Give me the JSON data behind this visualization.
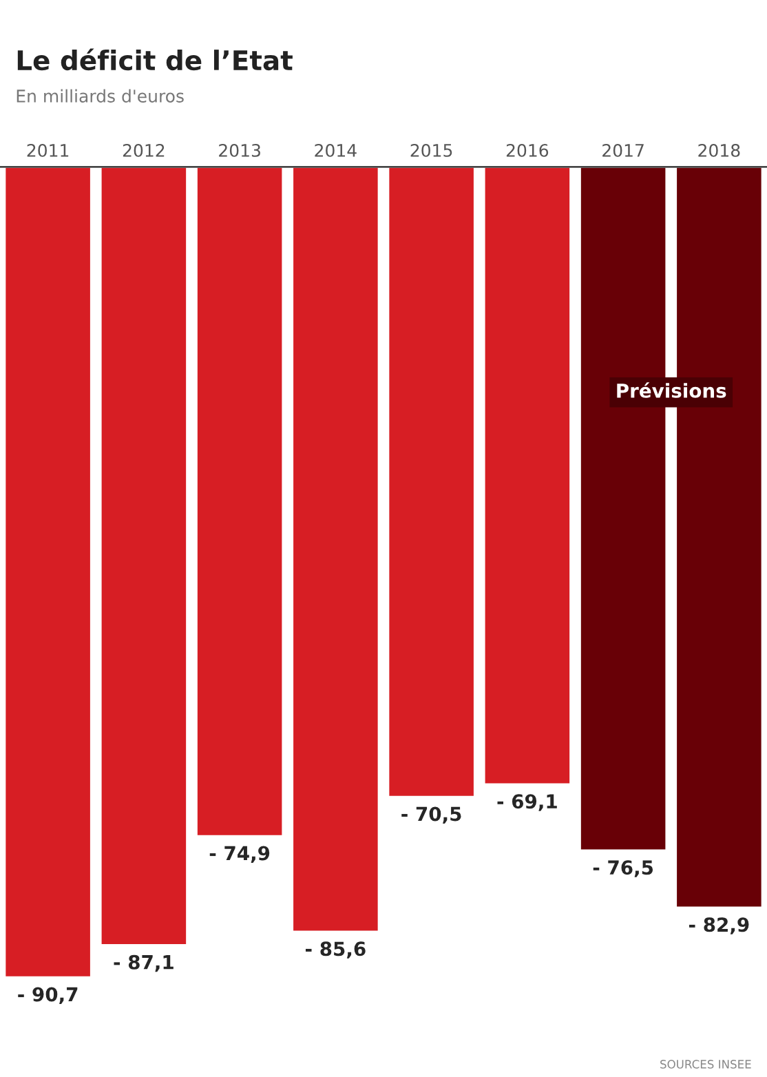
{
  "chart_data": {
    "type": "bar",
    "title": "Le déficit de l’Etat",
    "subtitle": "En milliards d'euros",
    "categories": [
      "2011",
      "2012",
      "2013",
      "2014",
      "2015",
      "2016",
      "2017",
      "2018"
    ],
    "values": [
      -90.7,
      -87.1,
      -74.9,
      -85.6,
      -70.5,
      -69.1,
      -76.5,
      -82.9
    ],
    "colors": [
      "#d71e24",
      "#d71e24",
      "#d71e24",
      "#d71e24",
      "#d71e24",
      "#d71e24",
      "#680006",
      "#680006"
    ],
    "value_labels": [
      "- 90,7",
      "- 87,1",
      "- 74,9",
      "- 85,6",
      "- 70,5",
      "- 69,1",
      "- 76,5",
      "- 82,9"
    ],
    "tick_labels": "x",
    "grid": false,
    "legend": false,
    "annotations": [
      "Prévisions",
      "SOURCES INSEE"
    ]
  }
}
